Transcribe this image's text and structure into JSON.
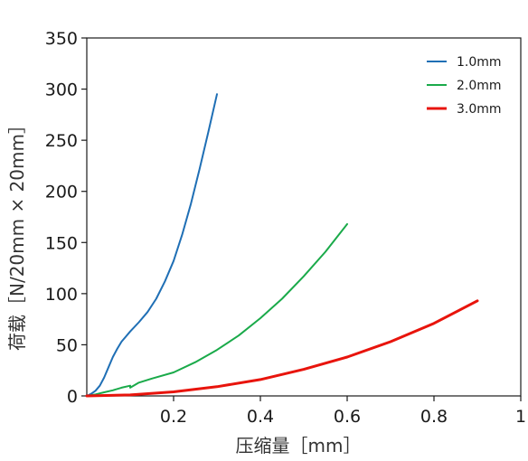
{
  "chart_data": {
    "type": "line",
    "title": "",
    "xlabel": "压缩量［mm］",
    "ylabel": "荷载［N/20mm × 20mm］",
    "xlim": [
      0,
      1
    ],
    "ylim": [
      0,
      350
    ],
    "xticks": [
      0.2,
      0.4,
      0.6,
      0.8,
      1
    ],
    "xtick_labels": [
      "0.2",
      "0.4",
      "0.6",
      "0.8",
      "1"
    ],
    "yticks": [
      0,
      50,
      100,
      150,
      200,
      250,
      300,
      350
    ],
    "ytick_labels": [
      "0",
      "50",
      "100",
      "150",
      "200",
      "250",
      "300",
      "350"
    ],
    "grid": false,
    "legend_position": "top-right",
    "series": [
      {
        "name": "1.0mm",
        "color": "#1f6fb5",
        "x": [
          0,
          0.01,
          0.02,
          0.03,
          0.04,
          0.05,
          0.06,
          0.07,
          0.08,
          0.09,
          0.1,
          0.12,
          0.14,
          0.16,
          0.18,
          0.2,
          0.22,
          0.24,
          0.26,
          0.28,
          0.3
        ],
        "y": [
          0,
          2,
          5,
          10,
          18,
          28,
          38,
          46,
          53,
          58,
          63,
          72,
          82,
          95,
          112,
          132,
          158,
          188,
          222,
          258,
          295
        ]
      },
      {
        "name": "2.0mm",
        "color": "#1aaa4a",
        "x": [
          0,
          0.02,
          0.04,
          0.06,
          0.08,
          0.1,
          0.1,
          0.12,
          0.15,
          0.2,
          0.25,
          0.3,
          0.35,
          0.4,
          0.45,
          0.5,
          0.55,
          0.6
        ],
        "y": [
          0,
          1.5,
          3.5,
          5.5,
          8,
          10,
          8,
          13,
          17,
          23,
          33,
          45,
          59,
          76,
          95,
          117,
          141,
          168
        ]
      },
      {
        "name": "3.0mm",
        "color": "#e8140c",
        "x": [
          0,
          0.1,
          0.2,
          0.3,
          0.4,
          0.5,
          0.6,
          0.7,
          0.8,
          0.9
        ],
        "y": [
          0,
          1,
          4,
          9,
          16,
          26,
          38,
          53,
          71,
          93
        ]
      }
    ]
  }
}
